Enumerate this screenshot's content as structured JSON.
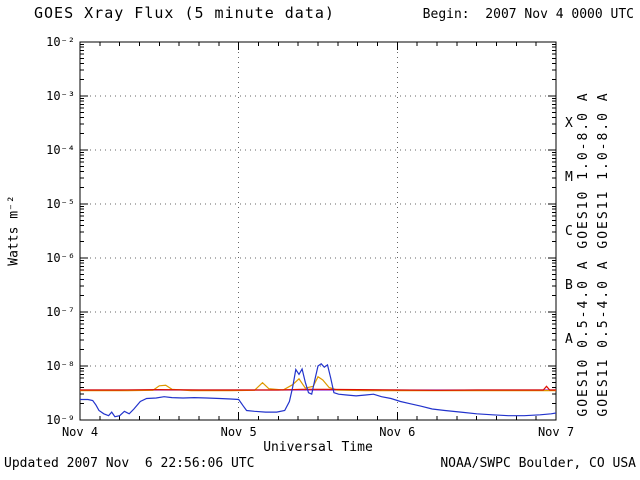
{
  "header": {
    "title": "GOES Xray Flux (5 minute data)",
    "begin_label": "Begin:  2007 Nov 4 0000 UTC"
  },
  "footer": {
    "updated": "Updated 2007 Nov  6 22:56:06 UTC",
    "source": "NOAA/SWPC Boulder, CO USA"
  },
  "chart_data": {
    "type": "line",
    "title": "GOES Xray Flux (5 minute data)",
    "xlabel": "Universal Time",
    "ylabel": "Watts m-2",
    "ylabel_display": "Watts m⁻²",
    "x_axis": {
      "unit": "days from 2007 Nov 4 0000 UTC",
      "range": [
        0,
        3
      ],
      "ticks": [
        {
          "day": 0,
          "label": "Nov 4"
        },
        {
          "day": 1,
          "label": "Nov 5"
        },
        {
          "day": 2,
          "label": "Nov 6"
        },
        {
          "day": 3,
          "label": "Nov 7"
        }
      ],
      "minor_tick_step_days": 0.125
    },
    "y_axis": {
      "scale": "log",
      "range_exponents": [
        -9,
        -2
      ],
      "tick_exponents": [
        -2,
        -3,
        -4,
        -5,
        -6,
        -7,
        -8,
        -9
      ]
    },
    "grid": {
      "style": "dotted",
      "h_line_exponents": [
        -3,
        -4,
        -5,
        -6,
        -7,
        -8
      ],
      "v_line_days": [
        1,
        2
      ]
    },
    "flare_classes": [
      {
        "label": "X",
        "log_center": -3.5
      },
      {
        "label": "M",
        "log_center": -4.5
      },
      {
        "label": "C",
        "log_center": -5.5
      },
      {
        "label": "B",
        "log_center": -6.5
      },
      {
        "label": "A",
        "log_center": -7.5
      }
    ],
    "legend_position": "right-rotated",
    "series": [
      {
        "name": "GOES10 1.0-8.0 A",
        "color": "#9933cc",
        "points": [
          [
            0,
            3.6e-09
          ],
          [
            0.5,
            3.6e-09
          ],
          [
            1,
            3.6e-09
          ],
          [
            1.5,
            3.6e-09
          ],
          [
            2,
            3.6e-09
          ],
          [
            2.5,
            3.6e-09
          ],
          [
            3,
            3.6e-09
          ]
        ]
      },
      {
        "name": "GOES11 1.0-8.0 A",
        "color": "#dd1100",
        "points": [
          [
            0,
            3.6e-09
          ],
          [
            0.25,
            3.6e-09
          ],
          [
            0.5,
            3.65e-09
          ],
          [
            0.75,
            3.6e-09
          ],
          [
            1,
            3.6e-09
          ],
          [
            1.25,
            3.6e-09
          ],
          [
            1.4,
            3.7e-09
          ],
          [
            1.55,
            3.7e-09
          ],
          [
            1.75,
            3.65e-09
          ],
          [
            2,
            3.6e-09
          ],
          [
            2.25,
            3.55e-09
          ],
          [
            2.5,
            3.6e-09
          ],
          [
            2.75,
            3.6e-09
          ],
          [
            2.92,
            3.6e-09
          ],
          [
            2.94,
            4.2e-09
          ],
          [
            2.96,
            3.6e-09
          ],
          [
            3,
            3.6e-09
          ]
        ]
      },
      {
        "name": "GOES10 0.5-4.0 A",
        "color": "#dd9900",
        "points": [
          [
            0,
            3.5e-09
          ],
          [
            0.3,
            3.5e-09
          ],
          [
            0.46,
            3.55e-09
          ],
          [
            0.5,
            4.3e-09
          ],
          [
            0.54,
            4.4e-09
          ],
          [
            0.58,
            3.7e-09
          ],
          [
            0.7,
            3.5e-09
          ],
          [
            0.95,
            3.5e-09
          ],
          [
            1.1,
            3.55e-09
          ],
          [
            1.15,
            4.9e-09
          ],
          [
            1.19,
            3.8e-09
          ],
          [
            1.28,
            3.6e-09
          ],
          [
            1.34,
            4.5e-09
          ],
          [
            1.38,
            5.8e-09
          ],
          [
            1.42,
            3.9e-09
          ],
          [
            1.47,
            4.2e-09
          ],
          [
            1.5,
            6.3e-09
          ],
          [
            1.53,
            5.5e-09
          ],
          [
            1.57,
            4e-09
          ],
          [
            1.62,
            3.6e-09
          ],
          [
            1.8,
            3.5e-09
          ],
          [
            2.1,
            3.5e-09
          ],
          [
            2.4,
            3.5e-09
          ],
          [
            2.7,
            3.5e-09
          ],
          [
            3,
            3.5e-09
          ]
        ]
      },
      {
        "name": "GOES11 0.5-4.0 A",
        "color": "#2233cc",
        "points": [
          [
            0,
            2.4e-09
          ],
          [
            0.05,
            2.4e-09
          ],
          [
            0.08,
            2.3e-09
          ],
          [
            0.1,
            1.9e-09
          ],
          [
            0.12,
            1.5e-09
          ],
          [
            0.15,
            1.3e-09
          ],
          [
            0.18,
            1.2e-09
          ],
          [
            0.2,
            1.4e-09
          ],
          [
            0.22,
            1.15e-09
          ],
          [
            0.25,
            1.2e-09
          ],
          [
            0.28,
            1.45e-09
          ],
          [
            0.31,
            1.3e-09
          ],
          [
            0.34,
            1.6e-09
          ],
          [
            0.38,
            2.2e-09
          ],
          [
            0.42,
            2.5e-09
          ],
          [
            0.48,
            2.55e-09
          ],
          [
            0.53,
            2.7e-09
          ],
          [
            0.58,
            2.6e-09
          ],
          [
            0.65,
            2.55e-09
          ],
          [
            0.72,
            2.6e-09
          ],
          [
            0.8,
            2.55e-09
          ],
          [
            0.88,
            2.5e-09
          ],
          [
            0.95,
            2.45e-09
          ],
          [
            1,
            2.4e-09
          ],
          [
            1.03,
            1.8e-09
          ],
          [
            1.05,
            1.5e-09
          ],
          [
            1.1,
            1.45e-09
          ],
          [
            1.17,
            1.4e-09
          ],
          [
            1.24,
            1.4e-09
          ],
          [
            1.29,
            1.5e-09
          ],
          [
            1.32,
            2.2e-09
          ],
          [
            1.34,
            4e-09
          ],
          [
            1.36,
            8.6e-09
          ],
          [
            1.38,
            7e-09
          ],
          [
            1.4,
            8.8e-09
          ],
          [
            1.42,
            5e-09
          ],
          [
            1.44,
            3.2e-09
          ],
          [
            1.46,
            3e-09
          ],
          [
            1.48,
            5.5e-09
          ],
          [
            1.5,
            1e-08
          ],
          [
            1.52,
            1.1e-08
          ],
          [
            1.54,
            9.5e-09
          ],
          [
            1.56,
            1.05e-08
          ],
          [
            1.58,
            6e-09
          ],
          [
            1.6,
            3.2e-09
          ],
          [
            1.63,
            3e-09
          ],
          [
            1.68,
            2.9e-09
          ],
          [
            1.74,
            2.8e-09
          ],
          [
            1.8,
            2.9e-09
          ],
          [
            1.85,
            3e-09
          ],
          [
            1.9,
            2.7e-09
          ],
          [
            1.96,
            2.5e-09
          ],
          [
            2.02,
            2.2e-09
          ],
          [
            2.08,
            2e-09
          ],
          [
            2.15,
            1.8e-09
          ],
          [
            2.22,
            1.6e-09
          ],
          [
            2.3,
            1.5e-09
          ],
          [
            2.4,
            1.4e-09
          ],
          [
            2.5,
            1.3e-09
          ],
          [
            2.6,
            1.25e-09
          ],
          [
            2.7,
            1.2e-09
          ],
          [
            2.8,
            1.2e-09
          ],
          [
            2.9,
            1.25e-09
          ],
          [
            2.97,
            1.3e-09
          ],
          [
            3,
            1.35e-09
          ]
        ]
      }
    ]
  }
}
